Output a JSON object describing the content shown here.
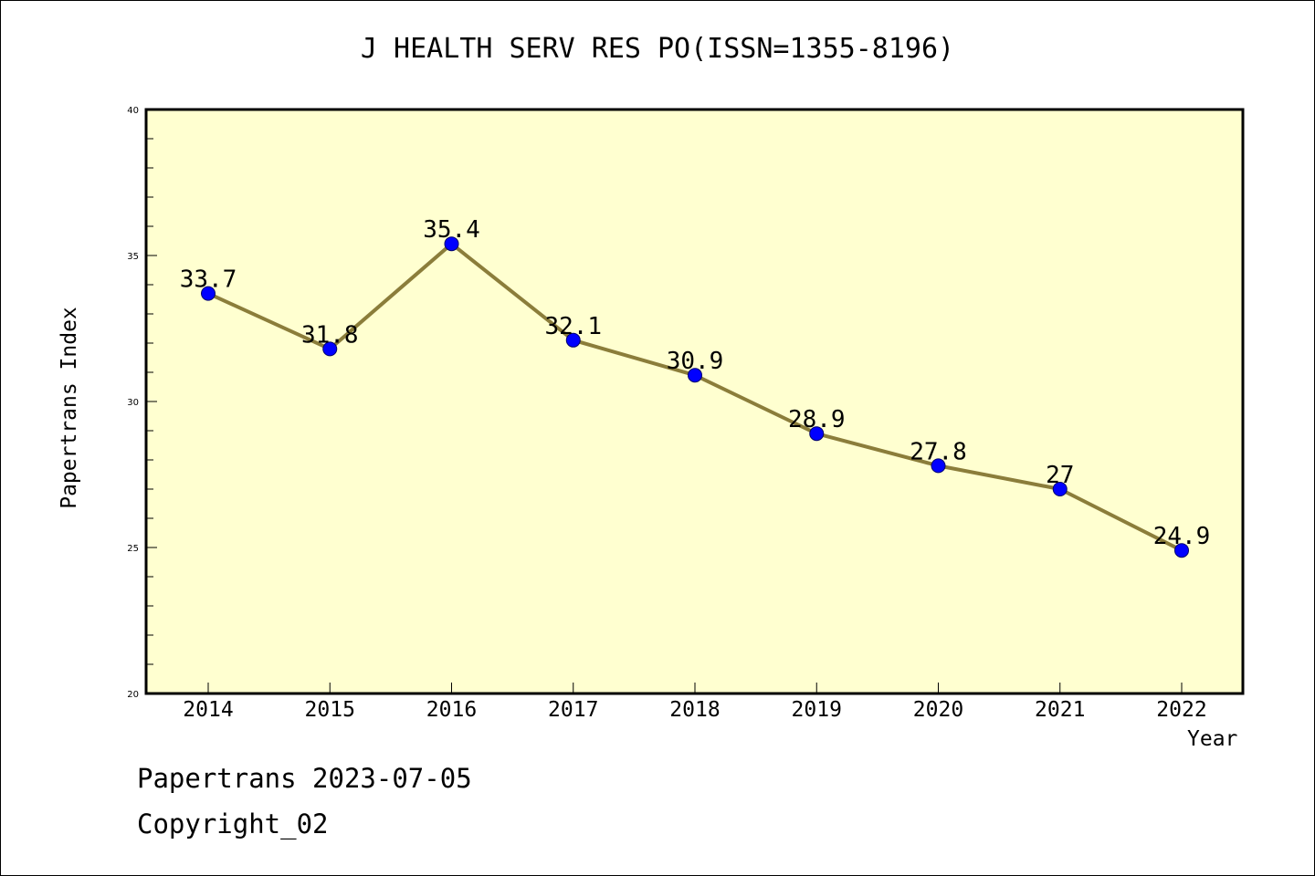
{
  "chart_data": {
    "type": "line",
    "title": "J HEALTH SERV RES PO(ISSN=1355-8196)",
    "xlabel": "Year",
    "ylabel": "Papertrans Index",
    "categories": [
      "2014",
      "2015",
      "2016",
      "2017",
      "2018",
      "2019",
      "2020",
      "2021",
      "2022"
    ],
    "values": [
      33.7,
      31.8,
      35.4,
      32.1,
      30.9,
      28.9,
      27.8,
      27,
      24.9
    ],
    "data_labels": [
      "33.7",
      "31.8",
      "35.4",
      "32.1",
      "30.9",
      "28.9",
      "27.8",
      "27",
      "24.9"
    ],
    "ylim": [
      20,
      40
    ],
    "yticks": [
      20,
      25,
      30,
      35,
      40
    ],
    "grid": false,
    "legend": "none",
    "colors": {
      "plot_background": "#FFFFD0",
      "line": "#8B7D3A",
      "marker": "#0000FF"
    }
  },
  "footer": {
    "line1": "Papertrans 2023-07-05",
    "line2": "Copyright_02"
  }
}
